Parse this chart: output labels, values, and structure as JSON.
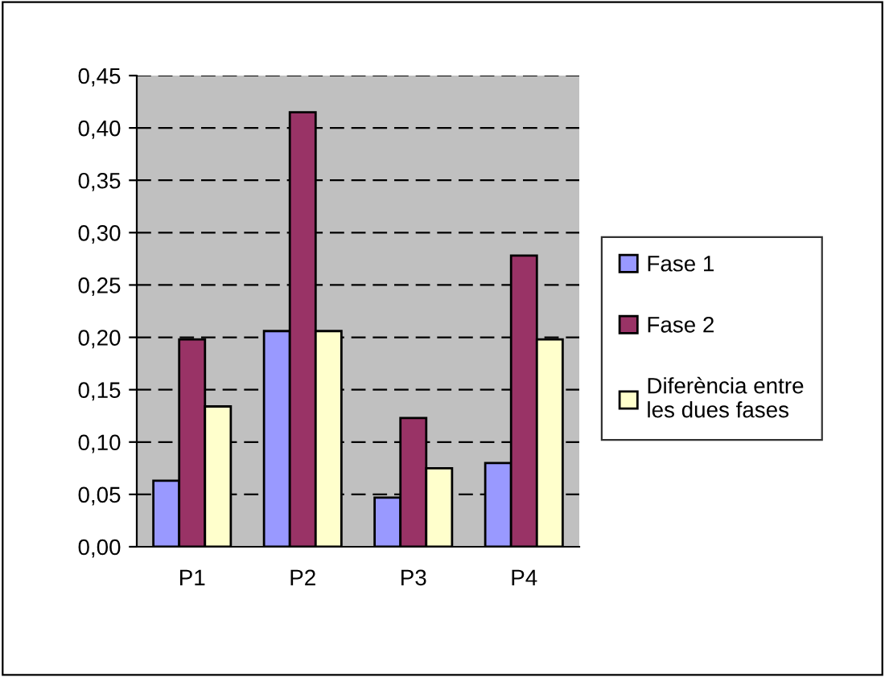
{
  "chart_data": {
    "type": "bar",
    "categories": [
      "P1",
      "P2",
      "P3",
      "P4"
    ],
    "series": [
      {
        "name": "Fase 1",
        "color": "#9999ff",
        "values": [
          0.063,
          0.206,
          0.047,
          0.08
        ]
      },
      {
        "name": "Fase 2",
        "color": "#993366",
        "values": [
          0.198,
          0.415,
          0.123,
          0.278
        ]
      },
      {
        "name": "Diferència entre\nles dues fases",
        "color": "#ffffcc",
        "values": [
          0.134,
          0.206,
          0.075,
          0.198
        ]
      }
    ],
    "ylim": [
      0,
      0.45
    ],
    "yticks": [
      {
        "value": 0,
        "label": "0,00"
      },
      {
        "value": 0.05,
        "label": "0,05"
      },
      {
        "value": 0.1,
        "label": "0,10"
      },
      {
        "value": 0.15,
        "label": "0,15"
      },
      {
        "value": 0.2,
        "label": "0,20"
      },
      {
        "value": 0.25,
        "label": "0,25"
      },
      {
        "value": 0.3,
        "label": "0,30"
      },
      {
        "value": 0.35,
        "label": "0,35"
      },
      {
        "value": 0.4,
        "label": "0,40"
      },
      {
        "value": 0.45,
        "label": "0,45"
      }
    ],
    "grid": "y",
    "legend": "right"
  }
}
